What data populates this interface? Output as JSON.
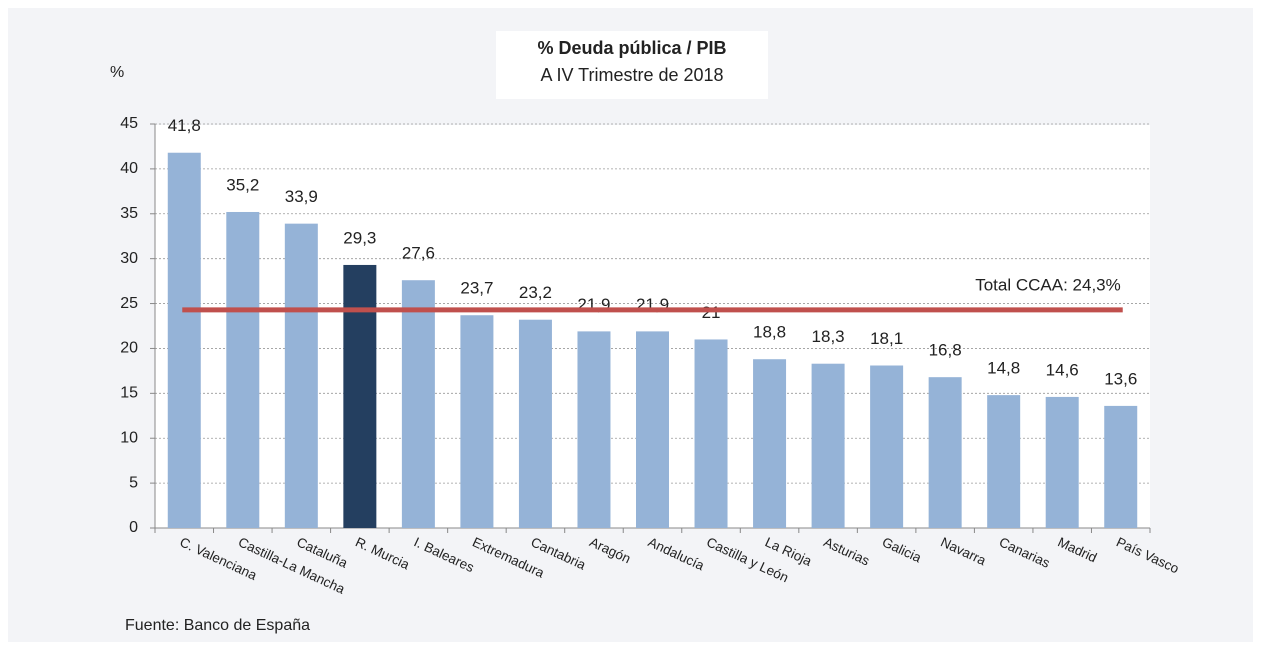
{
  "chart_data": {
    "type": "bar",
    "title": "% Deuda pública / PIB",
    "subtitle": "A IV Trimestre de 2018",
    "y_axis_label": "%",
    "source": "Fuente: Banco de España",
    "categories": [
      "C. Valenciana",
      "Castilla-La Mancha",
      "Cataluña",
      "R. Murcia",
      "I. Baleares",
      "Extremadura",
      "Cantabria",
      "Aragón",
      "Andalucía",
      "Castilla y León",
      "La Rioja",
      "Asturias",
      "Galicia",
      "Navarra",
      "Canarias",
      "Madrid",
      "País Vasco"
    ],
    "values": [
      41.8,
      35.2,
      33.9,
      29.3,
      27.6,
      23.7,
      23.2,
      21.9,
      21.9,
      21,
      18.8,
      18.3,
      18.1,
      16.8,
      14.8,
      14.6,
      13.6
    ],
    "value_labels": [
      "41,8",
      "35,2",
      "33,9",
      "29,3",
      "27,6",
      "23,7",
      "23,2",
      "21,9",
      "21,9",
      "21",
      "18,8",
      "18,3",
      "18,1",
      "16,8",
      "14,8",
      "14,6",
      "13,6"
    ],
    "colors": [
      "#95b3d7",
      "#95b3d7",
      "#95b3d7",
      "#243f60",
      "#95b3d7",
      "#95b3d7",
      "#95b3d7",
      "#95b3d7",
      "#95b3d7",
      "#95b3d7",
      "#95b3d7",
      "#95b3d7",
      "#95b3d7",
      "#95b3d7",
      "#95b3d7",
      "#95b3d7",
      "#95b3d7"
    ],
    "reference_line": {
      "value": 24.3,
      "label": "Total CCAA: 24,3%",
      "color": "#c0504d"
    },
    "ylim": [
      0,
      45
    ],
    "yticks": [
      0,
      5,
      10,
      15,
      20,
      25,
      30,
      35,
      40,
      45
    ],
    "grid": true
  }
}
